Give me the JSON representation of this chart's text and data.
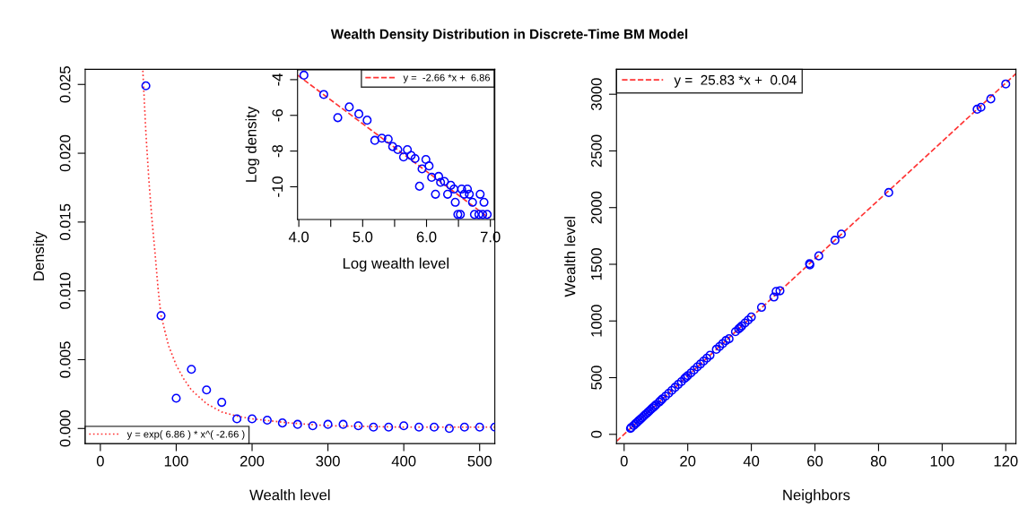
{
  "chart_data": [
    {
      "type": "scatter",
      "title": "Wealth Density Distribution in Discrete-Time BM Model",
      "xlabel": "Wealth level",
      "ylabel": "Density",
      "xlim": [
        -20,
        520
      ],
      "ylim": [
        -0.0011,
        0.0261
      ],
      "xticks": [
        0,
        100,
        200,
        300,
        400,
        500
      ],
      "yticks": [
        {
          "value": 0,
          "label": "0.000"
        },
        {
          "value": 0.005,
          "label": "0.005"
        },
        {
          "value": 0.01,
          "label": "0.010"
        },
        {
          "value": 0.015,
          "label": "0.015"
        },
        {
          "value": 0.02,
          "label": "0.020"
        },
        {
          "value": 0.025,
          "label": "0.025"
        }
      ],
      "grid": false,
      "legend": "bottom left",
      "series": [
        {
          "marker": "circle",
          "color": "#0000ff",
          "x": [
            60,
            80,
            100,
            120,
            140,
            160,
            180,
            200,
            220,
            240,
            260,
            280,
            300,
            320,
            340,
            360,
            380,
            400,
            420,
            440,
            460,
            480,
            500,
            520
          ],
          "values": [
            0.0249,
            0.0082,
            0.0022,
            0.0043,
            0.0028,
            0.0019,
            0.0007,
            0.0007,
            0.0006,
            0.0004,
            0.0003,
            0.0002,
            0.0003,
            0.0003,
            0.0002,
            0.0001,
            0.0001,
            0.0002,
            0.0001,
            0.0001,
            0.0,
            0.0001,
            0.0001,
            0.0001
          ]
        },
        {
          "type": "line",
          "name": "y = exp( 6.86 ) * x^( -2.66 )",
          "color": "#ff3333",
          "line_style": "dotted",
          "x": [
            56,
            60,
            64,
            68,
            72,
            76,
            80,
            90,
            100,
            110,
            120,
            140,
            160,
            180,
            200,
            250,
            300,
            400,
            520
          ],
          "values": [
            0.026,
            0.0215,
            0.018,
            0.0152,
            0.0128,
            0.0102,
            0.0082,
            0.006,
            0.0046,
            0.0036,
            0.0028,
            0.0018,
            0.0012,
            0.0009,
            0.0007,
            0.0004,
            0.0002,
            0.0001,
            0.0001
          ]
        }
      ]
    },
    {
      "type": "scatter",
      "xlabel": "Log wealth level",
      "ylabel": "Log density",
      "xlim": [
        3.98,
        7.06
      ],
      "ylim": [
        -11.83,
        -3.45
      ],
      "xticks": [
        {
          "value": 4.0,
          "label": "4.0"
        },
        {
          "value": 4.5,
          "label": null
        },
        {
          "value": 5.0,
          "label": "5.0"
        },
        {
          "value": 5.5,
          "label": null
        },
        {
          "value": 6.0,
          "label": "6.0"
        },
        {
          "value": 6.5,
          "label": null
        },
        {
          "value": 7.0,
          "label": "7.0"
        }
      ],
      "yticks": [
        -10,
        -8,
        -6,
        -4
      ],
      "grid": false,
      "legend": "top right",
      "series": [
        {
          "marker": "circle",
          "color": "#0000ff",
          "x": [
            4.08,
            4.39,
            4.61,
            4.79,
            4.94,
            5.07,
            5.19,
            5.3,
            5.4,
            5.47,
            5.55,
            5.64,
            5.7,
            5.76,
            5.82,
            5.89,
            5.93,
            5.99,
            6.04,
            6.08,
            6.14,
            6.19,
            6.22,
            6.28,
            6.33,
            6.38,
            6.43,
            6.45,
            6.49,
            6.53,
            6.55,
            6.59,
            6.64,
            6.67,
            6.72,
            6.75,
            6.82,
            6.84,
            6.88,
            6.9,
            6.95
          ],
          "values": [
            -3.75,
            -4.83,
            -6.13,
            -5.53,
            -5.92,
            -6.27,
            -7.4,
            -7.28,
            -7.33,
            -7.75,
            -7.92,
            -8.33,
            -7.92,
            -8.25,
            -8.42,
            -9.97,
            -9.0,
            -8.47,
            -8.83,
            -9.47,
            -10.42,
            -9.42,
            -9.75,
            -9.7,
            -10.42,
            -9.92,
            -10.13,
            -10.87,
            -11.55,
            -11.55,
            -10.13,
            -10.42,
            -10.13,
            -10.42,
            -10.87,
            -11.55,
            -11.55,
            -10.42,
            -11.55,
            -10.87,
            -11.55
          ]
        },
        {
          "type": "line",
          "name": "y =  -2.66 *x +  6.86",
          "color": "#ff3333",
          "line_style": "dashed",
          "x": [
            3.98,
            6.98
          ],
          "values": [
            -3.75,
            -11.75
          ]
        }
      ]
    },
    {
      "type": "scatter",
      "xlabel": "Neighbors",
      "ylabel": "Wealth level",
      "xlim": [
        -2.4,
        123.2
      ],
      "ylim": [
        -82,
        3220
      ],
      "xticks": [
        0,
        20,
        40,
        60,
        80,
        100,
        120
      ],
      "yticks": [
        0,
        500,
        1000,
        1500,
        2000,
        2500,
        3000
      ],
      "grid": false,
      "legend": "top left",
      "series": [
        {
          "marker": "circle",
          "color": "#0000ff",
          "x": [
            2,
            2.2,
            3,
            3.5,
            4,
            4.5,
            5,
            5.5,
            6,
            6.5,
            7,
            7.5,
            8,
            8.5,
            9,
            9.5,
            10,
            11,
            11.5,
            12,
            13,
            14,
            15,
            16,
            17,
            18,
            19,
            19.5,
            20,
            21,
            22,
            23,
            24,
            25,
            26,
            27,
            29,
            30,
            31,
            32,
            33,
            35,
            36,
            36.5,
            37,
            38,
            39,
            40,
            43.2,
            47.1,
            47.8,
            49,
            58.3,
            58.4,
            61.2,
            66.3,
            68.3,
            83.2,
            111,
            112.2,
            115.3,
            120
          ],
          "values": [
            52,
            60,
            78,
            92,
            104,
            118,
            130,
            143,
            156,
            170,
            182,
            195,
            208,
            222,
            234,
            246,
            260,
            284,
            298,
            312,
            336,
            362,
            388,
            414,
            440,
            465,
            492,
            505,
            518,
            542,
            568,
            595,
            620,
            646,
            672,
            697,
            750,
            775,
            801,
            827,
            843,
            905,
            930,
            942,
            956,
            982,
            1008,
            1035,
            1120,
            1211,
            1260,
            1266,
            1506,
            1495,
            1574,
            1712,
            1767,
            2133,
            2868,
            2885,
            2959,
            3091
          ]
        },
        {
          "type": "line",
          "name": "y =  25.83 *x +  0.04",
          "color": "#ff3333",
          "line_style": "dashed",
          "x": [
            -2.4,
            123.2
          ],
          "values": [
            -62,
            3182
          ]
        }
      ]
    }
  ]
}
